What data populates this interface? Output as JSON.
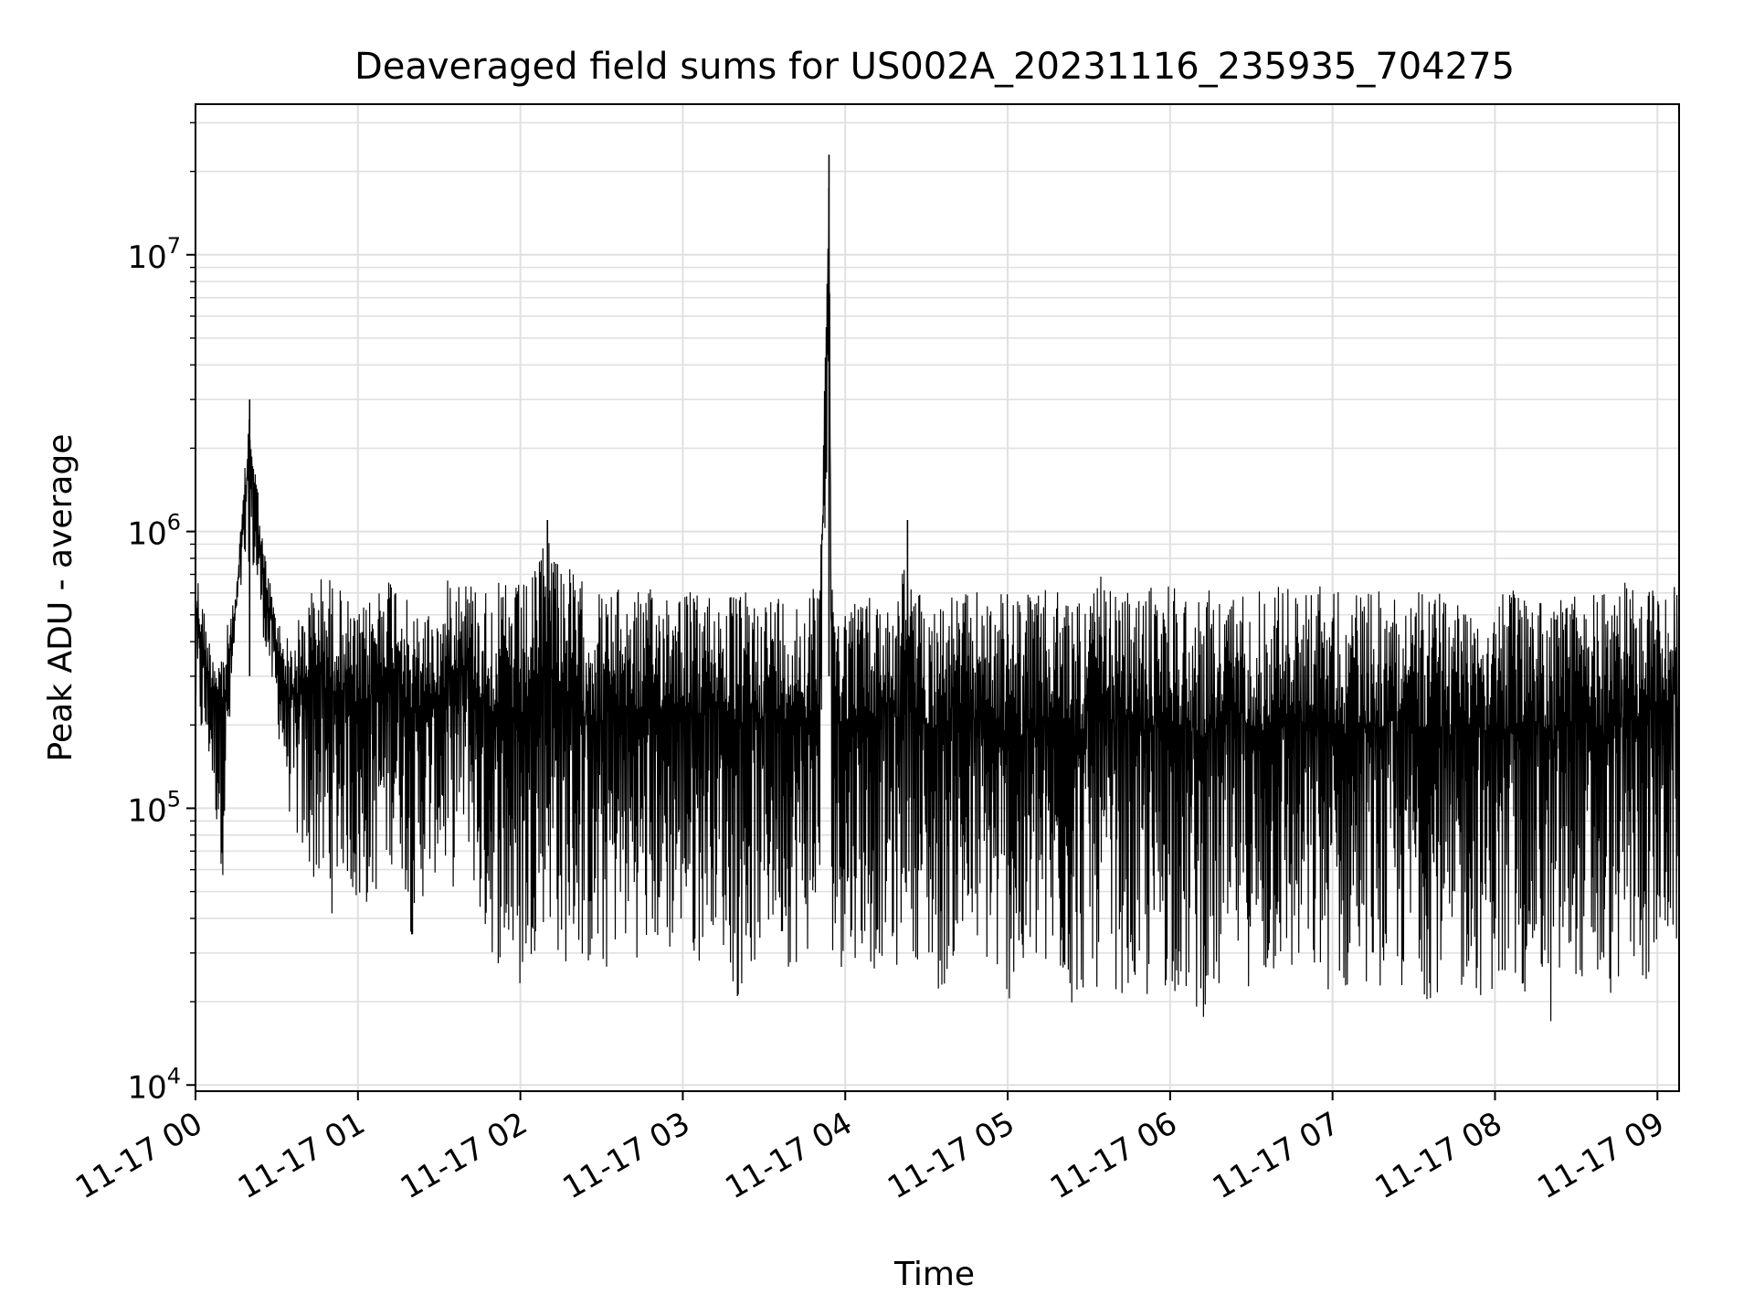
{
  "chart_data": {
    "type": "line",
    "title": "Deaveraged field sums for US002A_20231116_235935_704275",
    "xlabel": "Time",
    "ylabel": "Peak ADU - average",
    "y_scale": "log",
    "ylim": [
      9500,
      35000000
    ],
    "xlim": [
      "11-17 00:00",
      "11-17 09:08"
    ],
    "grid": true,
    "line_color": "#000000",
    "grid_color": "#e0e0e0",
    "x_ticks": [
      "11-17 00",
      "11-17 01",
      "11-17 02",
      "11-17 03",
      "11-17 04",
      "11-17 05",
      "11-17 06",
      "11-17 07",
      "11-17 08",
      "11-17 09"
    ],
    "y_ticks": [
      {
        "base": "10",
        "exp": "4",
        "value": 10000
      },
      {
        "base": "10",
        "exp": "5",
        "value": 100000
      },
      {
        "base": "10",
        "exp": "6",
        "value": 1000000
      },
      {
        "base": "10",
        "exp": "7",
        "value": 10000000
      }
    ],
    "series": [
      {
        "x": [
          "11-17 00:00",
          "11-17 00:05",
          "11-17 00:10",
          "11-17 00:15",
          "11-17 00:20",
          "11-17 00:25",
          "11-17 00:30",
          "11-17 00:35",
          "11-17 00:40",
          "11-17 00:45",
          "11-17 00:50",
          "11-17 00:55",
          "11-17 01:00",
          "11-17 01:05",
          "11-17 01:10",
          "11-17 01:15",
          "11-17 01:20",
          "11-17 01:25",
          "11-17 01:30",
          "11-17 01:35",
          "11-17 01:40",
          "11-17 01:45",
          "11-17 01:50",
          "11-17 01:55",
          "11-17 02:00",
          "11-17 02:05",
          "11-17 02:10",
          "11-17 02:15",
          "11-17 02:20",
          "11-17 02:25",
          "11-17 02:30",
          "11-17 02:35",
          "11-17 02:40",
          "11-17 02:45",
          "11-17 02:50",
          "11-17 02:55",
          "11-17 03:00",
          "11-17 03:05",
          "11-17 03:10",
          "11-17 03:15",
          "11-17 03:20",
          "11-17 03:25",
          "11-17 03:30",
          "11-17 03:35",
          "11-17 03:40",
          "11-17 03:45",
          "11-17 03:50",
          "11-17 03:54",
          "11-17 03:55",
          "11-17 04:00",
          "11-17 04:05",
          "11-17 04:10",
          "11-17 04:15",
          "11-17 04:20",
          "11-17 04:23",
          "11-17 04:25",
          "11-17 04:30",
          "11-17 04:35",
          "11-17 04:40",
          "11-17 04:45",
          "11-17 04:50",
          "11-17 04:55",
          "11-17 05:00",
          "11-17 05:05",
          "11-17 05:10",
          "11-17 05:15",
          "11-17 05:20",
          "11-17 05:25",
          "11-17 05:30",
          "11-17 05:35",
          "11-17 05:40",
          "11-17 05:45",
          "11-17 05:50",
          "11-17 05:55",
          "11-17 06:00",
          "11-17 06:05",
          "11-17 06:10",
          "11-17 06:15",
          "11-17 06:20",
          "11-17 06:25",
          "11-17 06:30",
          "11-17 06:35",
          "11-17 06:40",
          "11-17 06:45",
          "11-17 06:50",
          "11-17 06:55",
          "11-17 07:00",
          "11-17 07:05",
          "11-17 07:10",
          "11-17 07:15",
          "11-17 07:20",
          "11-17 07:25",
          "11-17 07:30",
          "11-17 07:35",
          "11-17 07:40",
          "11-17 07:45",
          "11-17 07:50",
          "11-17 07:55",
          "11-17 08:00",
          "11-17 08:05",
          "11-17 08:10",
          "11-17 08:15",
          "11-17 08:20",
          "11-17 08:25",
          "11-17 08:30",
          "11-17 08:35",
          "11-17 08:40",
          "11-17 08:45",
          "11-17 08:50",
          "11-17 08:55",
          "11-17 09:00",
          "11-17 09:05"
        ],
        "min": [
          190000,
          140000,
          55000,
          480000,
          800000,
          420000,
          200000,
          90000,
          60000,
          50000,
          40000,
          60000,
          38000,
          45000,
          55000,
          70000,
          33000,
          50000,
          60000,
          50000,
          80000,
          35000,
          28000,
          25000,
          20000,
          30000,
          40000,
          25000,
          30000,
          25000,
          22000,
          30000,
          30000,
          28000,
          30000,
          28000,
          35000,
          25000,
          40000,
          30000,
          20000,
          25000,
          30000,
          35000,
          25000,
          30000,
          28000,
          3000000,
          30000,
          25000,
          30000,
          25000,
          30000,
          25000,
          50000,
          30000,
          25000,
          20000,
          28000,
          25000,
          30000,
          22000,
          20000,
          18000,
          25000,
          20000,
          22000,
          17000,
          25000,
          20000,
          22000,
          20000,
          18000,
          20000,
          22000,
          20000,
          17000,
          18000,
          20000,
          25000,
          22000,
          20000,
          25000,
          22000,
          25000,
          20000,
          22000,
          20000,
          25000,
          22000,
          22000,
          20000,
          25000,
          20000,
          22000,
          14000,
          25000,
          20000,
          22000,
          18000,
          20000,
          25000,
          15000,
          20000,
          25000,
          20000,
          18000,
          22000,
          25000,
          22000,
          25000,
          30000
        ],
        "max": [
          800000,
          420000,
          400000,
          600000,
          3000000,
          900000,
          500000,
          400000,
          550000,
          700000,
          700000,
          600000,
          500000,
          600000,
          750000,
          700000,
          500000,
          550000,
          500000,
          800000,
          700000,
          650000,
          650000,
          660000,
          650000,
          700000,
          1100000,
          900000,
          700000,
          650000,
          620000,
          620000,
          630000,
          620000,
          620000,
          700000,
          650000,
          600000,
          620000,
          610000,
          600000,
          620000,
          600000,
          620000,
          610000,
          600000,
          650000,
          23000000,
          620000,
          600000,
          620000,
          600000,
          610000,
          600000,
          1100000,
          620000,
          600000,
          600000,
          610000,
          600000,
          620000,
          600000,
          610000,
          620000,
          600000,
          620000,
          610000,
          620000,
          600000,
          700000,
          620000,
          600000,
          620000,
          650000,
          700000,
          620000,
          610000,
          620000,
          600000,
          620000,
          650000,
          610000,
          700000,
          620000,
          610000,
          700000,
          620000,
          610000,
          600000,
          620000,
          600000,
          640000,
          620000,
          600000,
          620000,
          610000,
          600000,
          620000,
          600000,
          620000,
          600000,
          620000,
          600000,
          610000,
          620000,
          600000,
          650000,
          620000,
          680000,
          650000,
          700000,
          700000
        ]
      }
    ]
  }
}
